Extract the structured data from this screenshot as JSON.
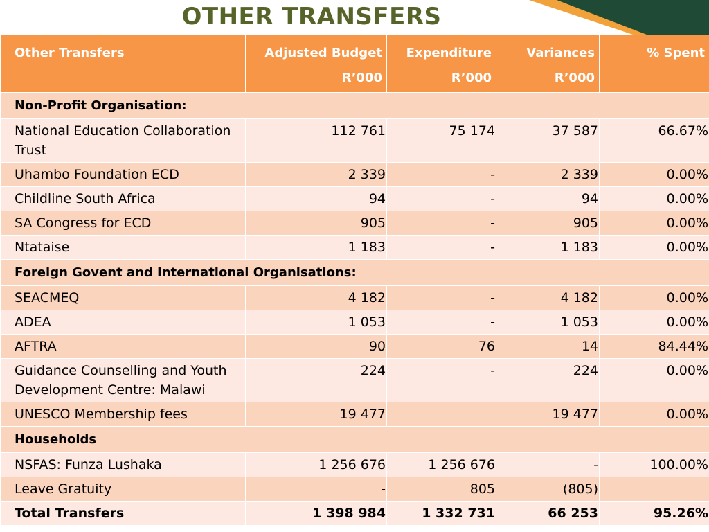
{
  "title": "OTHER TRANSFERS",
  "colors": {
    "header_bg": "#f79646",
    "group_bg": "#fbd4be",
    "row_light": "#fde9e1",
    "title": "#56642a"
  },
  "headers": [
    {
      "line1": "Other Transfers",
      "line2": ""
    },
    {
      "line1": "Adjusted Budget",
      "line2": "R’000"
    },
    {
      "line1": "Expenditure",
      "line2": "R’000"
    },
    {
      "line1": "Variances",
      "line2": "R’000"
    },
    {
      "line1": "% Spent",
      "line2": ""
    }
  ],
  "groups": [
    {
      "label": "Non-Profit Organisation:",
      "rows": [
        {
          "name": "National Education Collaboration Trust",
          "budget": "112 761",
          "expenditure": "75 174",
          "variance": "37 587",
          "spent": "66.67%"
        },
        {
          "name": "Uhambo Foundation ECD",
          "budget": "2 339",
          "expenditure": "-",
          "variance": "2 339",
          "spent": "0.00%"
        },
        {
          "name": "Childline South Africa",
          "budget": "94",
          "expenditure": "-",
          "variance": "94",
          "spent": "0.00%"
        },
        {
          "name": "SA Congress for ECD",
          "budget": "905",
          "expenditure": "-",
          "variance": "905",
          "spent": "0.00%"
        },
        {
          "name": "Ntataise",
          "budget": "1 183",
          "expenditure": "-",
          "variance": "1 183",
          "spent": "0.00%"
        }
      ]
    },
    {
      "label": "Foreign Govent and International Organisations:",
      "rows": [
        {
          "name": "SEACMEQ",
          "budget": "4 182",
          "expenditure": "-",
          "variance": "4 182",
          "spent": "0.00%"
        },
        {
          "name": "ADEA",
          "budget": "1 053",
          "expenditure": "-",
          "variance": "1 053",
          "spent": "0.00%"
        },
        {
          "name": "AFTRA",
          "budget": "90",
          "expenditure": "76",
          "variance": "14",
          "spent": "84.44%"
        },
        {
          "name": "Guidance Counselling and Youth Development Centre: Malawi",
          "budget": "224",
          "expenditure": "-",
          "variance": "224",
          "spent": "0.00%"
        },
        {
          "name": "UNESCO Membership fees",
          "budget": "19 477",
          "expenditure": "",
          "variance": "19 477",
          "spent": "0.00%"
        }
      ]
    },
    {
      "label": "Households",
      "rows": [
        {
          "name": "NSFAS: Funza Lushaka",
          "budget": "1 256 676",
          "expenditure": "1 256 676",
          "variance": "-",
          "spent": "100.00%"
        },
        {
          "name": "Leave Gratuity",
          "budget": "-",
          "expenditure": "805",
          "variance": "(805)",
          "spent": ""
        }
      ]
    }
  ],
  "total": {
    "name": "Total Transfers",
    "budget": "1 398 984",
    "expenditure": "1 332 731",
    "variance": "66 253",
    "spent": "95.26%"
  }
}
